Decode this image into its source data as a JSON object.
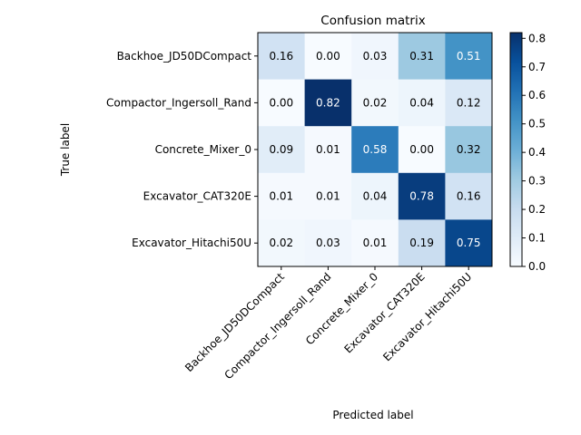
{
  "chart_data": {
    "type": "heatmap",
    "title": "Confusion matrix",
    "xlabel": "Predicted label",
    "ylabel": "True label",
    "row_labels": [
      "Backhoe_JD50DCompact",
      "Compactor_Ingersoll_Rand",
      "Concrete_Mixer_0",
      "Excavator_CAT320E",
      "Excavator_Hitachi50U"
    ],
    "col_labels": [
      "Backhoe_JD50DCompact",
      "Compactor_Ingersoll_Rand",
      "Concrete_Mixer_0",
      "Excavator_CAT320E",
      "Excavator_Hitachi50U"
    ],
    "values": [
      [
        0.16,
        0.0,
        0.03,
        0.31,
        0.51
      ],
      [
        0.0,
        0.82,
        0.02,
        0.04,
        0.12
      ],
      [
        0.09,
        0.01,
        0.58,
        0.0,
        0.32
      ],
      [
        0.01,
        0.01,
        0.04,
        0.78,
        0.16
      ],
      [
        0.02,
        0.03,
        0.01,
        0.19,
        0.75
      ]
    ],
    "colormap": "Blues",
    "colorbar": {
      "range": [
        0.0,
        0.82
      ],
      "ticks": [
        0.0,
        0.1,
        0.2,
        0.3,
        0.4,
        0.5,
        0.6,
        0.7,
        0.8
      ],
      "tick_labels": [
        "0.0",
        "0.1",
        "0.2",
        "0.3",
        "0.4",
        "0.5",
        "0.6",
        "0.7",
        "0.8"
      ]
    },
    "colors": {
      "low": "#f7fbff",
      "high": "#08306b",
      "text_dark": "#000000",
      "text_light": "#ffffff"
    },
    "grid": false,
    "legend": "colorbar-right"
  }
}
